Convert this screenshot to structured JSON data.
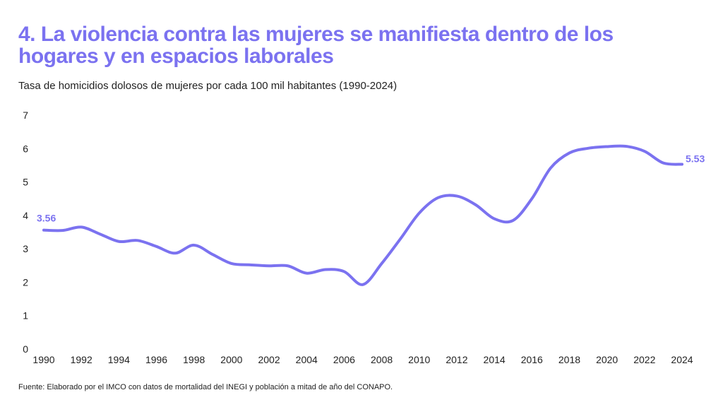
{
  "colors": {
    "title": "#7b72f0",
    "line": "#7b72f0",
    "text": "#222222"
  },
  "header": {
    "title": "4. La violencia contra las mujeres se manifiesta dentro de los hogares y en espacios laborales",
    "subtitle": "Tasa de homicidios dolosos de mujeres por cada 100 mil habitantes (1990-2024)"
  },
  "footer": {
    "source": "Fuente: Elaborado por el IMCO con datos de mortalidad del INEGI y población a mitad de año del CONAPO."
  },
  "chart_data": {
    "type": "line",
    "title": "4. La violencia contra las mujeres se manifiesta dentro de los hogares y en espacios laborales",
    "subtitle": "Tasa de homicidios dolosos de mujeres por cada 100 mil habitantes (1990-2024)",
    "xlabel": "",
    "ylabel": "",
    "xlim": [
      1990,
      2024
    ],
    "ylim": [
      0,
      7
    ],
    "grid": false,
    "x_ticks": [
      "1990",
      "1992",
      "1994",
      "1996",
      "1998",
      "2000",
      "2002",
      "2004",
      "2006",
      "2008",
      "2010",
      "2012",
      "2014",
      "2016",
      "2018",
      "2020",
      "2022",
      "2024"
    ],
    "y_ticks": [
      "0",
      "1",
      "2",
      "3",
      "4",
      "5",
      "6",
      "7"
    ],
    "series": [
      {
        "name": "Tasa de homicidios dolosos de mujeres",
        "x": [
          1990,
          1991,
          1992,
          1993,
          1994,
          1995,
          1996,
          1997,
          1998,
          1999,
          2000,
          2001,
          2002,
          2003,
          2004,
          2005,
          2006,
          2007,
          2008,
          2009,
          2010,
          2011,
          2012,
          2013,
          2014,
          2015,
          2016,
          2017,
          2018,
          2019,
          2020,
          2021,
          2022,
          2023,
          2024
        ],
        "values": [
          3.56,
          3.55,
          3.65,
          3.44,
          3.22,
          3.25,
          3.07,
          2.87,
          3.11,
          2.83,
          2.56,
          2.52,
          2.49,
          2.49,
          2.27,
          2.38,
          2.32,
          1.93,
          2.56,
          3.3,
          4.07,
          4.53,
          4.58,
          4.32,
          3.9,
          3.85,
          4.5,
          5.42,
          5.87,
          6.01,
          6.06,
          6.07,
          5.92,
          5.57,
          5.53
        ]
      }
    ],
    "annotations": [
      {
        "x": 1990,
        "y": 3.56,
        "text": "3.56"
      },
      {
        "x": 2024,
        "y": 5.53,
        "text": "5.53"
      }
    ]
  }
}
